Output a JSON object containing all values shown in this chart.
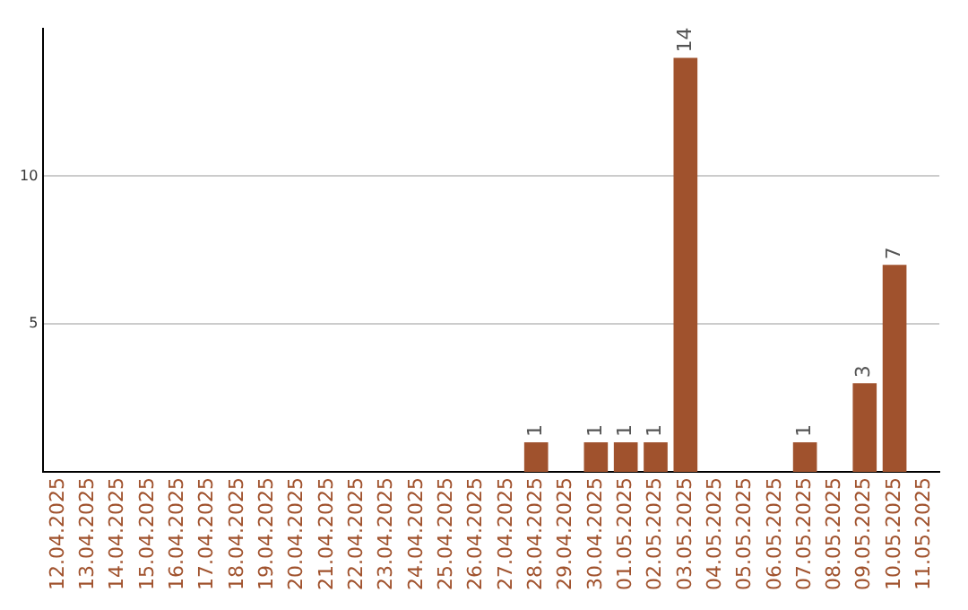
{
  "chart_data": {
    "type": "bar",
    "categories": [
      "12.04.2025",
      "13.04.2025",
      "14.04.2025",
      "15.04.2025",
      "16.04.2025",
      "17.04.2025",
      "18.04.2025",
      "19.04.2025",
      "20.04.2025",
      "21.04.2025",
      "22.04.2025",
      "23.04.2025",
      "24.04.2025",
      "25.04.2025",
      "26.04.2025",
      "27.04.2025",
      "28.04.2025",
      "29.04.2025",
      "30.04.2025",
      "01.05.2025",
      "02.05.2025",
      "03.05.2025",
      "04.05.2025",
      "05.05.2025",
      "06.05.2025",
      "07.05.2025",
      "08.05.2025",
      "09.05.2025",
      "10.05.2025",
      "11.05.2025"
    ],
    "values": [
      null,
      null,
      null,
      null,
      null,
      null,
      null,
      null,
      null,
      null,
      null,
      null,
      null,
      null,
      null,
      null,
      1,
      null,
      1,
      1,
      1,
      14,
      null,
      null,
      null,
      1,
      null,
      3,
      7,
      null
    ],
    "color": "#a0522d",
    "ylim": [
      0,
      15
    ],
    "yticks": [
      5,
      10
    ],
    "grid": "y",
    "data_labels": true,
    "legend": false
  }
}
